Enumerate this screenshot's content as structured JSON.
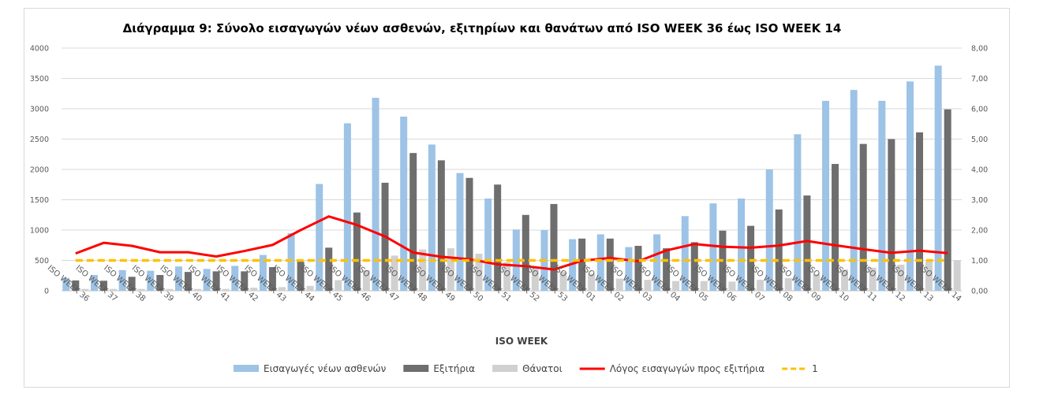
{
  "chart_data": {
    "type": "bar",
    "title": "Διάγραμμα 9: Σύνολο εισαγωγών νέων ασθενών, εξιτηρίων και θανάτων από ISO WEEK 36 έως ISO WEEK 14",
    "xlabel": "ISO WEEK",
    "ylabel": "",
    "ylim": [
      0,
      4000
    ],
    "y2lim": [
      0,
      8
    ],
    "y_ticks": [
      "0",
      "500",
      "1000",
      "1500",
      "2000",
      "2500",
      "3000",
      "3500",
      "4000"
    ],
    "y2_ticks": [
      "0,00",
      "1,00",
      "2,00",
      "3,00",
      "4,00",
      "5,00",
      "6,00",
      "7,00",
      "8,00"
    ],
    "categories": [
      "ISO WEEK 36",
      "ISO WEEK 37",
      "ISO WEEK 38",
      "ISO WEEK 39",
      "ISO WEEK 40",
      "ISO WEEK 41",
      "ISO WEEK 42",
      "ISO WEEK 43",
      "ISO WEEK 44",
      "ISO WEEK 45",
      "ISO WEEK 46",
      "ISO WEEK 47",
      "ISO WEEK 48",
      "ISO WEEK 49",
      "ISO WEEK 50",
      "ISO WEEK 51",
      "ISO WEEK 52",
      "ISO WEEK 53",
      "ISO WEEK 01",
      "ISO WEEK 02",
      "ISO WEEK 03",
      "ISO WEEK 04",
      "ISO WEEK 05",
      "ISO WEEK 06",
      "ISO WEEK 07",
      "ISO WEEK 08",
      "ISO WEEK 09",
      "ISO WEEK 10",
      "ISO WEEK 11",
      "ISO WEEK 12",
      "ISO WEEK 13",
      "ISO WEEK 14"
    ],
    "series": [
      {
        "name": "Εισαγωγές νέων ασθενών",
        "type": "bar",
        "axis": "left",
        "color": "#9dc3e6",
        "values": [
          210,
          260,
          340,
          330,
          400,
          360,
          410,
          590,
          950,
          1760,
          2760,
          3180,
          2870,
          2410,
          1940,
          1520,
          1010,
          1000,
          850,
          930,
          720,
          930,
          1230,
          1440,
          1520,
          2000,
          2580,
          3130,
          3310,
          3130,
          3450,
          3710
        ]
      },
      {
        "name": "Εξιτήρια",
        "type": "bar",
        "axis": "left",
        "color": "#6e6e6e",
        "values": [
          170,
          165,
          230,
          260,
          310,
          320,
          320,
          390,
          480,
          710,
          1290,
          1780,
          2270,
          2150,
          1860,
          1750,
          1250,
          1430,
          860,
          860,
          740,
          700,
          800,
          990,
          1070,
          1340,
          1570,
          2090,
          2420,
          2500,
          2610,
          2990
        ]
      },
      {
        "name": "Θάνατοι",
        "type": "bar",
        "axis": "left",
        "color": "#d0d0d0",
        "values": [
          30,
          30,
          30,
          30,
          30,
          30,
          50,
          60,
          80,
          175,
          340,
          580,
          680,
          700,
          610,
          470,
          390,
          310,
          280,
          200,
          180,
          160,
          160,
          150,
          180,
          210,
          270,
          350,
          380,
          430,
          480,
          500
        ]
      },
      {
        "name": "Λόγος εισαγωγών προς εξιτήρια",
        "type": "line",
        "axis": "right",
        "color": "#ff0000",
        "values": [
          1.23,
          1.58,
          1.48,
          1.27,
          1.27,
          1.13,
          1.31,
          1.51,
          2.0,
          2.45,
          2.17,
          1.79,
          1.26,
          1.12,
          1.04,
          0.87,
          0.81,
          0.7,
          0.99,
          1.08,
          0.97,
          1.33,
          1.54,
          1.45,
          1.42,
          1.49,
          1.64,
          1.5,
          1.37,
          1.25,
          1.32,
          1.24
        ]
      },
      {
        "name": "1",
        "type": "line",
        "axis": "right",
        "dashed": true,
        "color": "#ffc000",
        "values": [
          1,
          1,
          1,
          1,
          1,
          1,
          1,
          1,
          1,
          1,
          1,
          1,
          1,
          1,
          1,
          1,
          1,
          1,
          1,
          1,
          1,
          1,
          1,
          1,
          1,
          1,
          1,
          1,
          1,
          1,
          1,
          1
        ]
      }
    ],
    "legend_position": "bottom",
    "grid": true
  }
}
